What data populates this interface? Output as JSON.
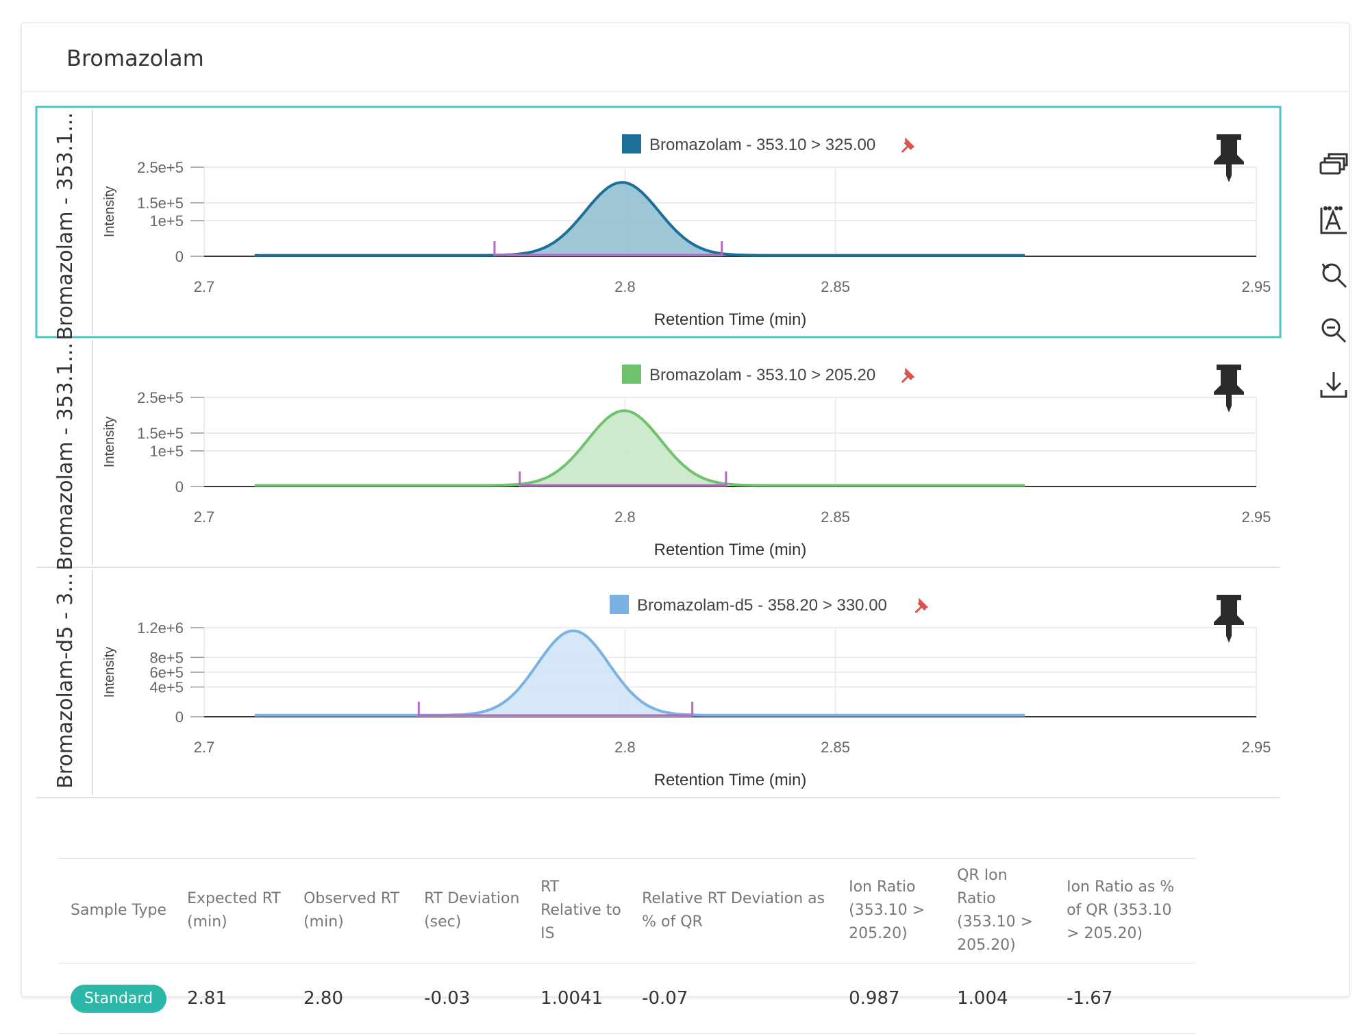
{
  "card": {
    "title": "Bromazolam"
  },
  "toolbar": {
    "items": [
      {
        "name": "layers-icon"
      },
      {
        "name": "autoscale-icon"
      },
      {
        "name": "zoom-reset-icon"
      },
      {
        "name": "zoom-in-icon"
      },
      {
        "name": "download-icon"
      }
    ]
  },
  "chart_data": [
    {
      "type": "area",
      "side_label": "Bromazolam - 353.1...",
      "title": "Bromazolam - 353.10 > 325.00",
      "series": [
        {
          "name": "Bromazolam - 353.10 > 325.00",
          "color": "#1c6f96",
          "fill": "#8cbccf",
          "peak_rt": 2.7993,
          "peak_intensity": 205000,
          "sigma": 0.0087,
          "baseline": 2500
        }
      ],
      "x_range": [
        2.7,
        2.95
      ],
      "data_extent": [
        2.712,
        2.895
      ],
      "xticks": [
        "2.7",
        "2.8",
        "2.85",
        "2.95"
      ],
      "yticks": [
        "2.5e+5",
        "1.5e+5",
        "1e+5",
        "0"
      ],
      "ylim": [
        0,
        250000
      ],
      "integration": {
        "start": 2.769,
        "end": 2.823,
        "color": "#b36cc2"
      },
      "xlabel": "Retention Time (min)",
      "ylabel": "Intensity",
      "selected": true,
      "grid": true,
      "legend_position": "top"
    },
    {
      "type": "area",
      "side_label": "Bromazolam - 353.1...",
      "title": "Bromazolam - 353.10 > 205.20",
      "series": [
        {
          "name": "Bromazolam - 353.10 > 205.20",
          "color": "#6fc26e",
          "fill": "#c6e6c3",
          "peak_rt": 2.7998,
          "peak_intensity": 210000,
          "sigma": 0.0087,
          "baseline": 3000
        }
      ],
      "x_range": [
        2.7,
        2.95
      ],
      "data_extent": [
        2.712,
        2.895
      ],
      "xticks": [
        "2.7",
        "2.8",
        "2.85",
        "2.95"
      ],
      "yticks": [
        "2.5e+5",
        "1.5e+5",
        "1e+5",
        "0"
      ],
      "ylim": [
        0,
        250000
      ],
      "integration": {
        "start": 2.775,
        "end": 2.824,
        "color": "#b36cc2"
      },
      "xlabel": "Retention Time (min)",
      "ylabel": "Intensity",
      "selected": false,
      "grid": true,
      "legend_position": "top"
    },
    {
      "type": "area",
      "side_label": "Bromazolam-d5 - 3...",
      "title": "Bromazolam-d5 - 358.20 > 330.00",
      "series": [
        {
          "name": "Bromazolam-d5 - 358.20 > 330.00",
          "color": "#7bb2e3",
          "fill": "#cfe3f6",
          "peak_rt": 2.7877,
          "peak_intensity": 1140000,
          "sigma": 0.0085,
          "baseline": 20000
        }
      ],
      "x_range": [
        2.7,
        2.95
      ],
      "data_extent": [
        2.712,
        2.895
      ],
      "xticks": [
        "2.7",
        "2.8",
        "2.85",
        "2.95"
      ],
      "yticks": [
        "1.2e+6",
        "8e+5",
        "6e+5",
        "4e+5",
        "0"
      ],
      "ylim": [
        0,
        1200000
      ],
      "integration": {
        "start": 2.751,
        "end": 2.816,
        "color": "#b36cc2"
      },
      "xlabel": "Retention Time (min)",
      "ylabel": "Intensity",
      "selected": false,
      "grid": true,
      "legend_position": "top"
    }
  ],
  "table": {
    "headers": [
      "Sample Type",
      "Expected RT (min)",
      "Observed RT (min)",
      "RT Deviation (sec)",
      "RT Relative to IS",
      "Relative RT Deviation as % of QR",
      "Ion Ratio (353.10 > 205.20)",
      "QR Ion Ratio (353.10 > 205.20)",
      "Ion Ratio as % of QR (353.10 > 205.20)"
    ],
    "row": {
      "sample_type": "Standard",
      "expected_rt": "2.81",
      "observed_rt": "2.80",
      "rt_deviation": "-0.03",
      "rt_relative_is": "1.0041",
      "relative_rt_deviation": "-0.07",
      "ion_ratio": "0.987",
      "qr_ion_ratio": "1.004",
      "ion_ratio_pct_qr": "-1.67"
    }
  }
}
